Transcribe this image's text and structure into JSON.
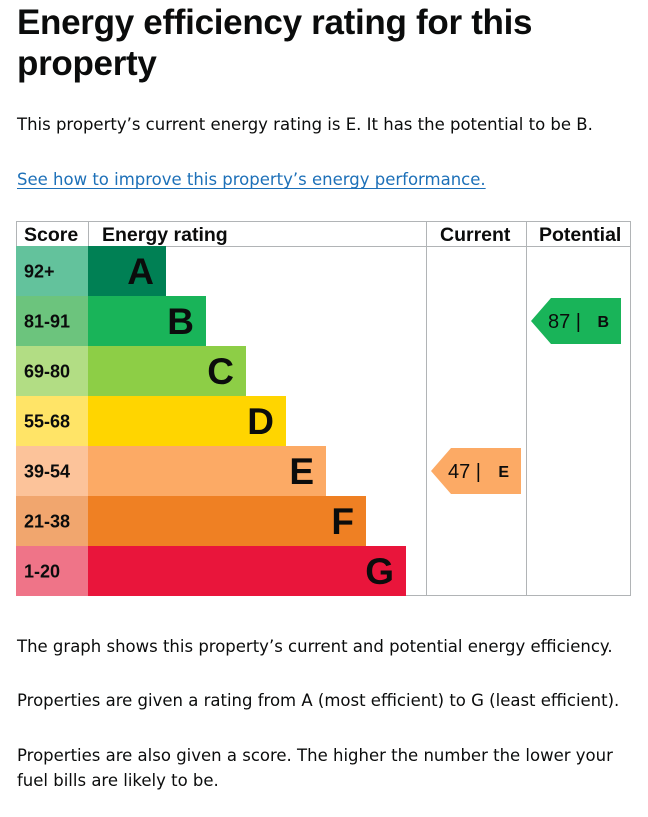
{
  "heading": "Energy efficiency rating for this property",
  "summary": "This property’s current energy rating is E. It has the potential to be B.",
  "improve_link": "See how to improve this property’s energy performance.",
  "table_headers": {
    "score": "Score",
    "rating": "Energy rating",
    "current": "Current",
    "potential": "Potential"
  },
  "bands": [
    {
      "score": "92+",
      "letter": "A",
      "color": "#008054",
      "score_bg": "#63c29c"
    },
    {
      "score": "81-91",
      "letter": "B",
      "color": "#19b459",
      "score_bg": "#6cc47d"
    },
    {
      "score": "69-80",
      "letter": "C",
      "color": "#8dce46",
      "score_bg": "#b2dd84"
    },
    {
      "score": "55-68",
      "letter": "D",
      "color": "#ffd500",
      "score_bg": "#ffe467"
    },
    {
      "score": "39-54",
      "letter": "E",
      "color": "#fcaa65",
      "score_bg": "#fcc39a"
    },
    {
      "score": "21-38",
      "letter": "F",
      "color": "#ef8023",
      "score_bg": "#f1a66e"
    },
    {
      "score": "1-20",
      "letter": "G",
      "color": "#e9153b",
      "score_bg": "#ef7488"
    }
  ],
  "current": {
    "score": "47",
    "letter": "E",
    "separator": "|",
    "color": "#fcaa65"
  },
  "potential": {
    "score": "87",
    "letter": "B",
    "separator": "|",
    "color": "#19b459"
  },
  "graph_description": "The graph shows this property’s current and potential energy efficiency.",
  "rating_description": "Properties are given a rating from A (most efficient) to G (least efficient).",
  "score_description": "Properties are also given a score. The higher the number the lower your fuel bills are likely to be."
}
